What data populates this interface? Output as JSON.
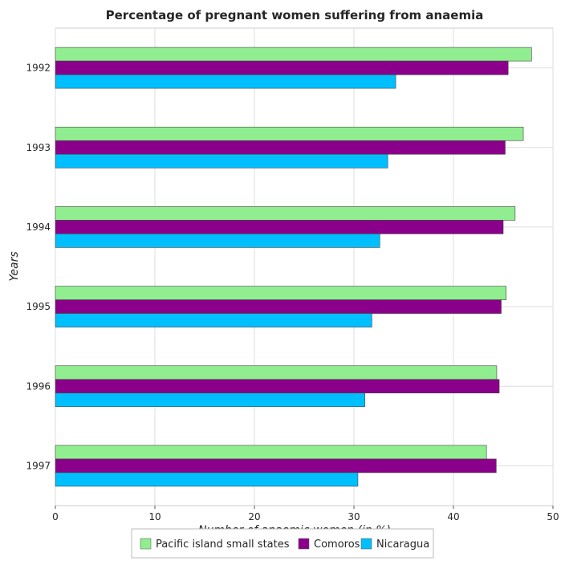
{
  "chart_data": {
    "type": "bar",
    "orientation": "horizontal",
    "title": "Percentage of pregnant women suffering from anaemia",
    "xlabel": "Number of anaemic women (in %)",
    "ylabel": "Years",
    "categories": [
      "1992",
      "1993",
      "1994",
      "1995",
      "1996",
      "1997"
    ],
    "xlim": [
      0,
      50
    ],
    "xticks": [
      0,
      10,
      20,
      30,
      40,
      50
    ],
    "series": [
      {
        "name": "Pacific island small states",
        "color": "#90ee90",
        "values": [
          47.85,
          47.02,
          46.2,
          45.3,
          44.35,
          43.32
        ]
      },
      {
        "name": "Comoros",
        "color": "#8b008b",
        "values": [
          45.5,
          45.2,
          45.0,
          44.8,
          44.6,
          44.3
        ]
      },
      {
        "name": "Nicaragua",
        "color": "#00bfff",
        "values": [
          34.2,
          33.4,
          32.6,
          31.8,
          31.1,
          30.4
        ]
      }
    ],
    "grid": true,
    "legend_position": "bottom"
  }
}
